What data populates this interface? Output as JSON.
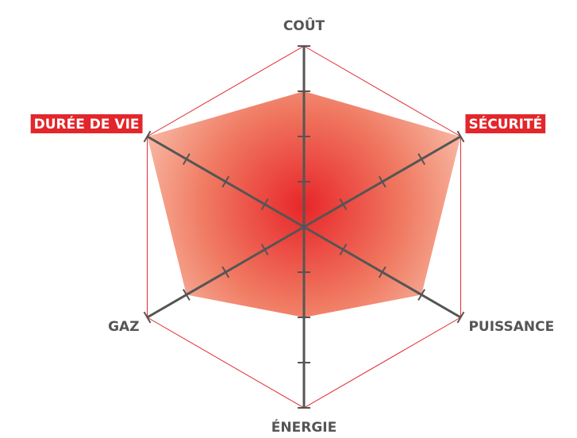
{
  "chart_data": {
    "type": "radar",
    "categories": [
      "COÛT",
      "SÉCURITÉ",
      "PUISSANCE",
      "ÉNERGIE",
      "GAZ",
      "DURÉE DE VIE"
    ],
    "values": [
      3,
      4,
      3,
      2,
      3,
      4
    ],
    "rlim": [
      0,
      4
    ],
    "rticks": [
      1,
      2,
      3,
      4
    ],
    "highlighted": [
      "SÉCURITÉ",
      "DURÉE DE VIE"
    ],
    "color": "#e3262b",
    "axis_color": "#555555"
  }
}
